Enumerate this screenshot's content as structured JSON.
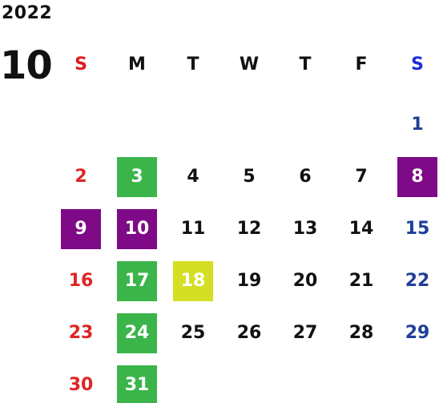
{
  "calendar": {
    "year": "2022",
    "month": "10",
    "weekdays": [
      "S",
      "M",
      "T",
      "W",
      "T",
      "F",
      "S"
    ],
    "leading_blanks": 6,
    "days": [
      {
        "label": "1",
        "weekday": "sat",
        "highlight": null
      },
      {
        "label": "2",
        "weekday": "sun",
        "highlight": null
      },
      {
        "label": "3",
        "weekday": "mon",
        "highlight": "green"
      },
      {
        "label": "4",
        "weekday": "tue",
        "highlight": null
      },
      {
        "label": "5",
        "weekday": "wed",
        "highlight": null
      },
      {
        "label": "6",
        "weekday": "thu",
        "highlight": null
      },
      {
        "label": "7",
        "weekday": "fri",
        "highlight": null
      },
      {
        "label": "8",
        "weekday": "sat",
        "highlight": "purple"
      },
      {
        "label": "9",
        "weekday": "sun",
        "highlight": "purple"
      },
      {
        "label": "10",
        "weekday": "mon",
        "highlight": "purple"
      },
      {
        "label": "11",
        "weekday": "tue",
        "highlight": null
      },
      {
        "label": "12",
        "weekday": "wed",
        "highlight": null
      },
      {
        "label": "13",
        "weekday": "thu",
        "highlight": null
      },
      {
        "label": "14",
        "weekday": "fri",
        "highlight": null
      },
      {
        "label": "15",
        "weekday": "sat",
        "highlight": null
      },
      {
        "label": "16",
        "weekday": "sun",
        "highlight": null
      },
      {
        "label": "17",
        "weekday": "mon",
        "highlight": "green"
      },
      {
        "label": "18",
        "weekday": "tue",
        "highlight": "yellow"
      },
      {
        "label": "19",
        "weekday": "wed",
        "highlight": null
      },
      {
        "label": "20",
        "weekday": "thu",
        "highlight": null
      },
      {
        "label": "21",
        "weekday": "fri",
        "highlight": null
      },
      {
        "label": "22",
        "weekday": "sat",
        "highlight": null
      },
      {
        "label": "23",
        "weekday": "sun",
        "highlight": null
      },
      {
        "label": "24",
        "weekday": "mon",
        "highlight": "green"
      },
      {
        "label": "25",
        "weekday": "tue",
        "highlight": null
      },
      {
        "label": "26",
        "weekday": "wed",
        "highlight": null
      },
      {
        "label": "27",
        "weekday": "thu",
        "highlight": null
      },
      {
        "label": "28",
        "weekday": "fri",
        "highlight": null
      },
      {
        "label": "29",
        "weekday": "sat",
        "highlight": null
      },
      {
        "label": "30",
        "weekday": "sun",
        "highlight": null
      },
      {
        "label": "31",
        "weekday": "mon",
        "highlight": "green"
      }
    ]
  },
  "colors": {
    "sunday_text": "#e02424",
    "saturday_text": "#1e3f9a",
    "sunday_header": "#e01b1b",
    "saturday_header": "#1a2fd6",
    "highlight_green": "#3bb54a",
    "highlight_purple": "#7e0a87",
    "highlight_yellow": "#d4df24"
  }
}
